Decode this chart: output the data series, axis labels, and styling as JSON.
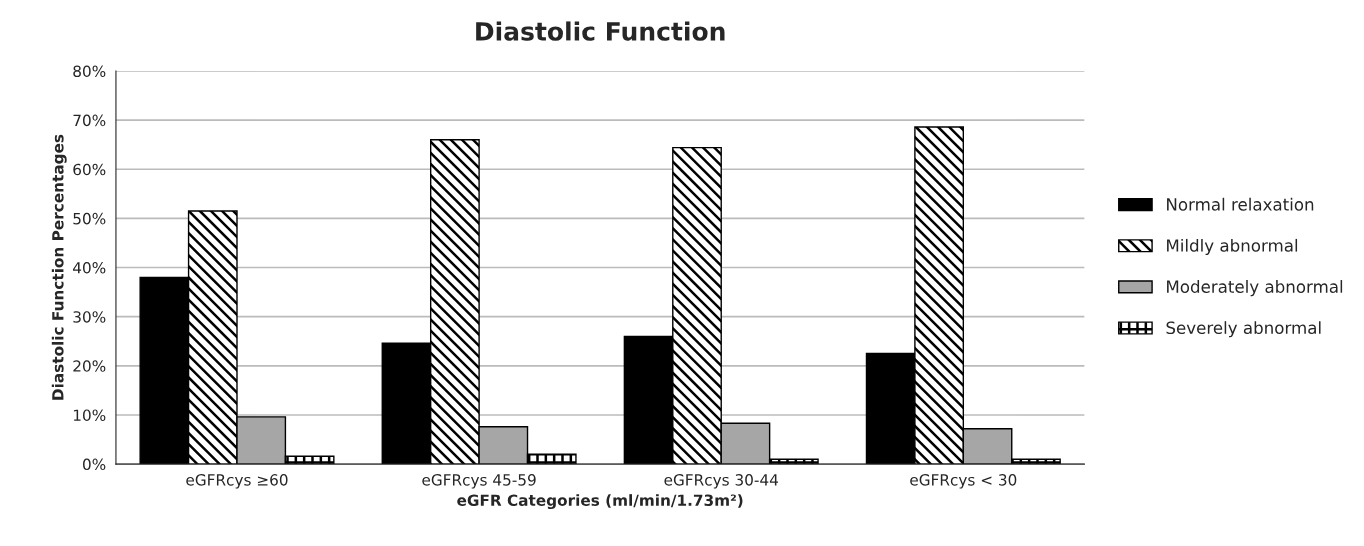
{
  "chart_data": {
    "type": "bar",
    "title": "Diastolic Function",
    "xlabel": "eGFR Categories (ml/min/1.73m²)",
    "ylabel": "Diastolic Function Percentages",
    "categories": [
      "eGFRcys ≥60",
      "eGFRcys 45-59",
      "eGFRcys 30-44",
      "eGFRcys < 30"
    ],
    "series": [
      {
        "name": "Normal relaxation",
        "color": "#000000",
        "values": [
          38,
          24.6,
          26,
          22.5
        ]
      },
      {
        "name": "Mildly abnormal",
        "color": "#000000",
        "values": [
          51.5,
          66,
          64.4,
          68.6
        ]
      },
      {
        "name": "Moderately abnormal",
        "color": "#a6a6a6",
        "values": [
          9.6,
          7.6,
          8.3,
          7.2
        ]
      },
      {
        "name": "Severely abnormal",
        "color": "#000000",
        "values": [
          1.6,
          2,
          1,
          1
        ]
      }
    ],
    "ylim": [
      0,
      80
    ],
    "yticks": [
      {
        "value": 0,
        "label": "0%"
      },
      {
        "value": 10,
        "label": "10%"
      },
      {
        "value": 20,
        "label": "20%"
      },
      {
        "value": 30,
        "label": "30%"
      },
      {
        "value": 40,
        "label": "40%"
      },
      {
        "value": 50,
        "label": "50%"
      },
      {
        "value": 60,
        "label": "60%"
      },
      {
        "value": 70,
        "label": "70%"
      },
      {
        "value": 80,
        "label": "80%"
      }
    ],
    "grid": "y",
    "legend": "right"
  }
}
